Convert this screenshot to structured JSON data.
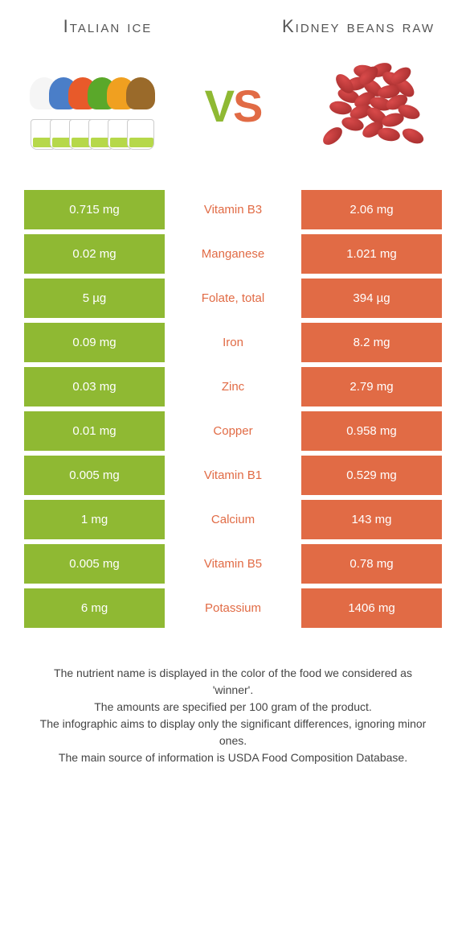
{
  "colors": {
    "green": "#8fb933",
    "orange": "#e16b45"
  },
  "food_left": {
    "title": "Italian ice",
    "cone_colors": [
      "#f5f5f5",
      "#4a7ec8",
      "#e85a2a",
      "#5aa82a",
      "#f0a020",
      "#9a6a2a"
    ]
  },
  "food_right": {
    "title": "Kidney beans raw"
  },
  "vs": {
    "v": "V",
    "s": "S"
  },
  "rows": [
    {
      "left": "0.715 mg",
      "nutrient": "Vitamin B3",
      "right": "2.06 mg",
      "winner": "right"
    },
    {
      "left": "0.02 mg",
      "nutrient": "Manganese",
      "right": "1.021 mg",
      "winner": "right"
    },
    {
      "left": "5 µg",
      "nutrient": "Folate, total",
      "right": "394 µg",
      "winner": "right"
    },
    {
      "left": "0.09 mg",
      "nutrient": "Iron",
      "right": "8.2 mg",
      "winner": "right"
    },
    {
      "left": "0.03 mg",
      "nutrient": "Zinc",
      "right": "2.79 mg",
      "winner": "right"
    },
    {
      "left": "0.01 mg",
      "nutrient": "Copper",
      "right": "0.958 mg",
      "winner": "right"
    },
    {
      "left": "0.005 mg",
      "nutrient": "Vitamin B1",
      "right": "0.529 mg",
      "winner": "right"
    },
    {
      "left": "1 mg",
      "nutrient": "Calcium",
      "right": "143 mg",
      "winner": "right"
    },
    {
      "left": "0.005 mg",
      "nutrient": "Vitamin B5",
      "right": "0.78 mg",
      "winner": "right"
    },
    {
      "left": "6 mg",
      "nutrient": "Potassium",
      "right": "1406 mg",
      "winner": "right"
    }
  ],
  "footer_lines": [
    "The nutrient name is displayed in the color of the food we considered as 'winner'.",
    "The amounts are specified per 100 gram of the product.",
    "The infographic aims to display only the significant differences, ignoring minor ones.",
    "The main source of information is USDA Food Composition Database."
  ]
}
